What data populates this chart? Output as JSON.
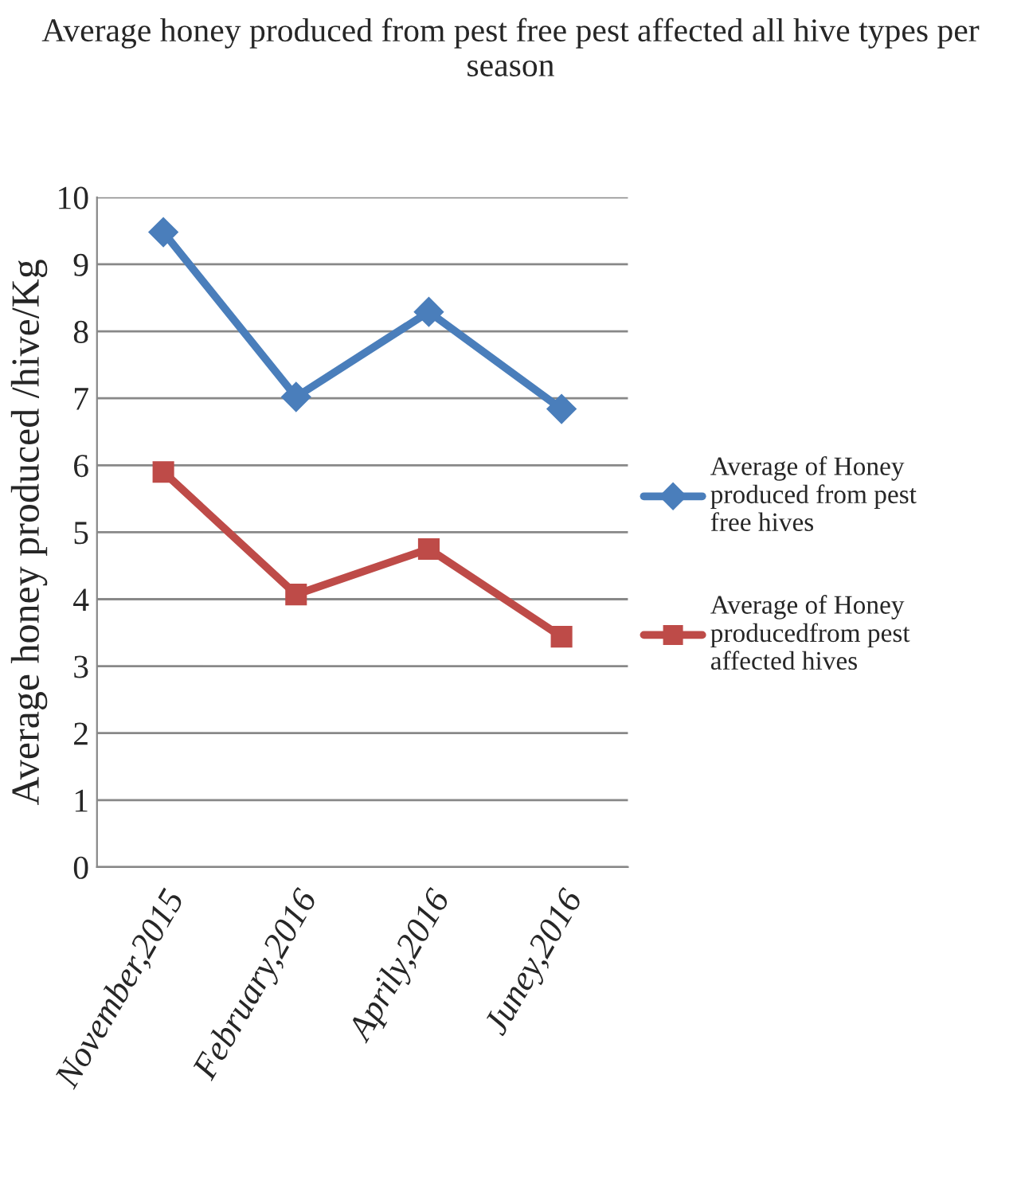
{
  "chart_data": {
    "type": "line",
    "title": "Average honey produced from pest free pest affected all hive types per season",
    "ylabel": "Average honey produced /hive/Kg",
    "categories": [
      "November,2015",
      "February,2016",
      "Aprily,2016",
      "Juney,2016"
    ],
    "series": [
      {
        "name": "Average of Honey produced from pest free hives",
        "color": "#4a7ebb",
        "marker": "diamond",
        "values": [
          9.48,
          7.02,
          8.29,
          6.84
        ]
      },
      {
        "name": "Average of Honey producedfrom pest affected hives",
        "color": "#be4b48",
        "marker": "square",
        "values": [
          5.9,
          4.07,
          4.75,
          3.44
        ]
      }
    ],
    "ylim": [
      0,
      10
    ],
    "yticks": [
      0,
      1,
      2,
      3,
      4,
      5,
      6,
      7,
      8,
      9,
      10
    ],
    "grid": "y",
    "legend": "right",
    "line_style": "solid"
  }
}
